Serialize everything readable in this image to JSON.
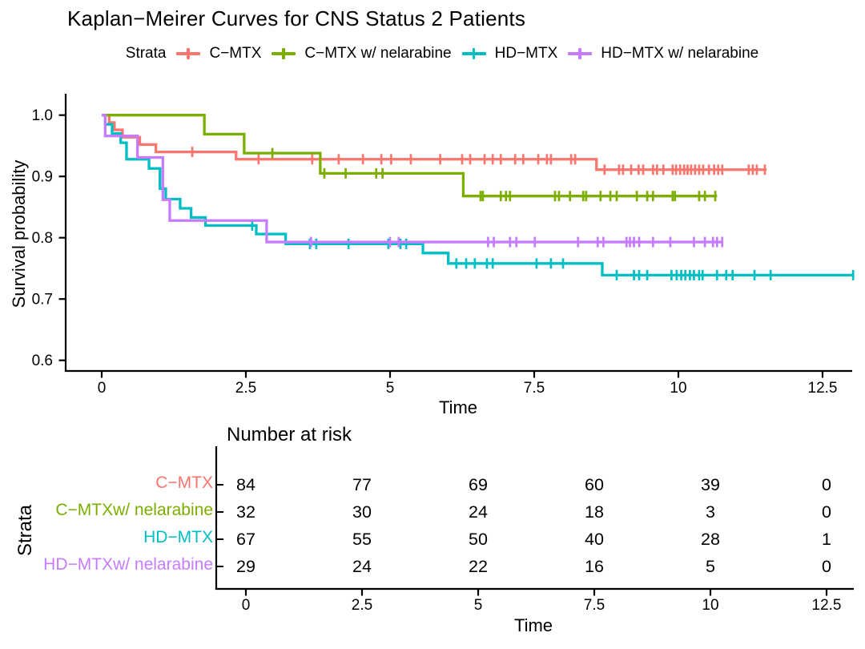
{
  "title": "Kaplan−Meirer Curves for CNS Status 2 Patients",
  "legend": {
    "label": "Strata",
    "items": [
      {
        "label": "C−MTX",
        "color": "#F8766D"
      },
      {
        "label": "C−MTX w/ nelarabine",
        "color": "#7CAE00"
      },
      {
        "label": "HD−MTX",
        "color": "#00BFC4"
      },
      {
        "label": "HD−MTX w/ nelarabine",
        "color": "#C77CFF"
      }
    ]
  },
  "chart_data": {
    "type": "line",
    "subtype": "kaplan-meier-step",
    "title": "Kaplan−Meirer Curves for CNS Status 2 Patients",
    "xlabel": "Time",
    "ylabel": "Survival probability",
    "xticks": [
      0,
      2.5,
      5,
      7.5,
      10,
      12.5
    ],
    "yticks": [
      0.6,
      0.7,
      0.8,
      0.9,
      1.0
    ],
    "xlim": [
      0,
      13.1
    ],
    "ylim": [
      0.58,
      1.03
    ],
    "grid": false,
    "legend_position": "top",
    "series": [
      {
        "name": "C−MTX",
        "color": "#F8766D",
        "end": 11.53,
        "steps": [
          [
            0,
            1.0
          ],
          [
            0.13,
            0.988
          ],
          [
            0.22,
            0.976
          ],
          [
            0.36,
            0.964
          ],
          [
            0.66,
            0.952
          ],
          [
            0.94,
            0.94
          ],
          [
            2.33,
            0.928
          ],
          [
            8.58,
            0.911
          ]
        ],
        "censors": [
          [
            1.57,
            0.94
          ],
          [
            2.72,
            0.928
          ],
          [
            3.65,
            0.928
          ],
          [
            4.11,
            0.928
          ],
          [
            4.53,
            0.928
          ],
          [
            4.85,
            0.928
          ],
          [
            5.02,
            0.928
          ],
          [
            5.36,
            0.928
          ],
          [
            5.87,
            0.928
          ],
          [
            6.25,
            0.928
          ],
          [
            6.39,
            0.928
          ],
          [
            6.64,
            0.928
          ],
          [
            6.78,
            0.928
          ],
          [
            6.92,
            0.928
          ],
          [
            7.17,
            0.928
          ],
          [
            7.31,
            0.928
          ],
          [
            7.57,
            0.928
          ],
          [
            7.72,
            0.928
          ],
          [
            7.79,
            0.928
          ],
          [
            8.14,
            0.928
          ],
          [
            8.21,
            0.928
          ],
          [
            8.72,
            0.911
          ],
          [
            8.97,
            0.911
          ],
          [
            9.04,
            0.911
          ],
          [
            9.18,
            0.911
          ],
          [
            9.31,
            0.911
          ],
          [
            9.39,
            0.911
          ],
          [
            9.56,
            0.911
          ],
          [
            9.63,
            0.911
          ],
          [
            9.74,
            0.911
          ],
          [
            9.9,
            0.911
          ],
          [
            9.96,
            0.911
          ],
          [
            10.03,
            0.911
          ],
          [
            10.1,
            0.911
          ],
          [
            10.16,
            0.911
          ],
          [
            10.22,
            0.911
          ],
          [
            10.29,
            0.911
          ],
          [
            10.36,
            0.911
          ],
          [
            10.43,
            0.911
          ],
          [
            10.53,
            0.911
          ],
          [
            10.62,
            0.911
          ],
          [
            10.69,
            0.911
          ],
          [
            10.76,
            0.911
          ],
          [
            11.22,
            0.911
          ],
          [
            11.29,
            0.911
          ],
          [
            11.36,
            0.911
          ],
          [
            11.5,
            0.911
          ]
        ]
      },
      {
        "name": "C−MTX w/ nelarabine",
        "color": "#7CAE00",
        "end": 10.67,
        "steps": [
          [
            0,
            1.0
          ],
          [
            1.78,
            0.969
          ],
          [
            2.47,
            0.938
          ],
          [
            3.79,
            0.905
          ],
          [
            6.27,
            0.868
          ]
        ],
        "censors": [
          [
            2.96,
            0.938
          ],
          [
            3.86,
            0.905
          ],
          [
            4.23,
            0.905
          ],
          [
            4.76,
            0.905
          ],
          [
            4.87,
            0.905
          ],
          [
            6.57,
            0.868
          ],
          [
            6.61,
            0.868
          ],
          [
            6.92,
            0.868
          ],
          [
            7.01,
            0.868
          ],
          [
            7.08,
            0.868
          ],
          [
            7.86,
            0.868
          ],
          [
            7.93,
            0.868
          ],
          [
            8.12,
            0.868
          ],
          [
            8.35,
            0.868
          ],
          [
            8.4,
            0.868
          ],
          [
            8.65,
            0.868
          ],
          [
            8.82,
            0.868
          ],
          [
            8.93,
            0.868
          ],
          [
            9.28,
            0.868
          ],
          [
            9.46,
            0.868
          ],
          [
            9.56,
            0.868
          ],
          [
            9.9,
            0.868
          ],
          [
            9.94,
            0.868
          ],
          [
            10.36,
            0.868
          ],
          [
            10.46,
            0.868
          ],
          [
            10.64,
            0.868
          ]
        ]
      },
      {
        "name": "HD−MTX",
        "color": "#00BFC4",
        "end": 13.05,
        "steps": [
          [
            0,
            1.0
          ],
          [
            0.06,
            0.985
          ],
          [
            0.18,
            0.97
          ],
          [
            0.33,
            0.955
          ],
          [
            0.43,
            0.928
          ],
          [
            0.82,
            0.913
          ],
          [
            1.01,
            0.88
          ],
          [
            1.11,
            0.863
          ],
          [
            1.36,
            0.848
          ],
          [
            1.55,
            0.833
          ],
          [
            1.8,
            0.82
          ],
          [
            2.68,
            0.806
          ],
          [
            3.19,
            0.79
          ],
          [
            5.57,
            0.775
          ],
          [
            6.01,
            0.758
          ],
          [
            8.68,
            0.739
          ]
        ],
        "censors": [
          [
            2.61,
            0.82
          ],
          [
            3.61,
            0.79
          ],
          [
            3.72,
            0.79
          ],
          [
            4.28,
            0.79
          ],
          [
            4.97,
            0.79
          ],
          [
            5.18,
            0.79
          ],
          [
            5.28,
            0.79
          ],
          [
            6.15,
            0.758
          ],
          [
            6.32,
            0.758
          ],
          [
            6.47,
            0.758
          ],
          [
            6.68,
            0.758
          ],
          [
            6.78,
            0.758
          ],
          [
            7.54,
            0.758
          ],
          [
            7.79,
            0.758
          ],
          [
            8.0,
            0.758
          ],
          [
            8.93,
            0.739
          ],
          [
            9.23,
            0.739
          ],
          [
            9.32,
            0.739
          ],
          [
            9.46,
            0.739
          ],
          [
            9.88,
            0.739
          ],
          [
            9.97,
            0.739
          ],
          [
            10.05,
            0.739
          ],
          [
            10.12,
            0.739
          ],
          [
            10.2,
            0.739
          ],
          [
            10.27,
            0.739
          ],
          [
            10.36,
            0.739
          ],
          [
            10.42,
            0.739
          ],
          [
            10.67,
            0.739
          ],
          [
            10.83,
            0.739
          ],
          [
            10.94,
            0.739
          ],
          [
            11.32,
            0.739
          ],
          [
            11.6,
            0.739
          ],
          [
            13.03,
            0.739
          ]
        ]
      },
      {
        "name": "HD−MTX w/ nelarabine",
        "color": "#C77CFF",
        "end": 10.76,
        "steps": [
          [
            0,
            1.0
          ],
          [
            0.06,
            0.966
          ],
          [
            0.62,
            0.931
          ],
          [
            1.06,
            0.862
          ],
          [
            1.18,
            0.828
          ],
          [
            2.86,
            0.793
          ]
        ],
        "censors": [
          [
            3.63,
            0.793
          ],
          [
            5.0,
            0.793
          ],
          [
            5.15,
            0.793
          ],
          [
            6.7,
            0.793
          ],
          [
            6.8,
            0.793
          ],
          [
            7.08,
            0.793
          ],
          [
            7.19,
            0.793
          ],
          [
            7.51,
            0.793
          ],
          [
            8.26,
            0.793
          ],
          [
            8.6,
            0.793
          ],
          [
            8.7,
            0.793
          ],
          [
            9.1,
            0.793
          ],
          [
            9.16,
            0.793
          ],
          [
            9.23,
            0.793
          ],
          [
            9.32,
            0.793
          ],
          [
            9.56,
            0.793
          ],
          [
            9.86,
            0.793
          ],
          [
            10.27,
            0.793
          ],
          [
            10.46,
            0.793
          ],
          [
            10.6,
            0.793
          ],
          [
            10.67,
            0.793
          ],
          [
            10.76,
            0.793
          ]
        ]
      }
    ]
  },
  "risk_table": {
    "title": "Number at risk",
    "ylabel": "Strata",
    "xlabel": "Time",
    "xticks": [
      0,
      2.5,
      5,
      7.5,
      10,
      12.5
    ],
    "rows": [
      {
        "label": "C−MTX",
        "color": "#F8766D",
        "values": [
          84,
          77,
          69,
          60,
          39,
          0
        ]
      },
      {
        "label": "C−MTXw/ nelarabine",
        "color": "#7CAE00",
        "values": [
          32,
          30,
          24,
          18,
          3,
          0
        ]
      },
      {
        "label": "HD−MTX",
        "color": "#00BFC4",
        "values": [
          67,
          55,
          50,
          40,
          28,
          1
        ]
      },
      {
        "label": "HD−MTXw/ nelarabine",
        "color": "#C77CFF",
        "values": [
          29,
          24,
          22,
          16,
          5,
          0
        ]
      }
    ]
  }
}
